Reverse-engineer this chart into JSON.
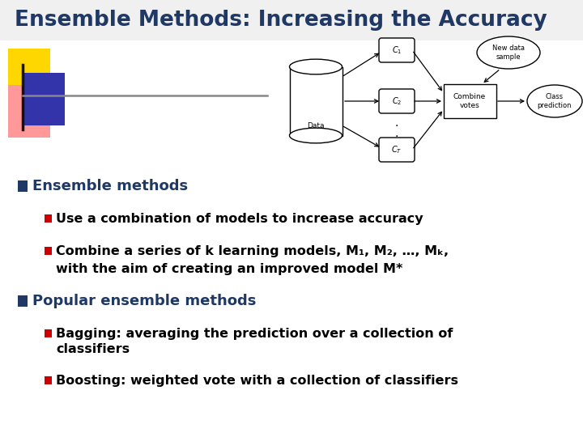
{
  "title": "Ensemble Methods: Increasing the Accuracy",
  "title_color": "#1F3864",
  "title_fontsize": 19,
  "bg_color": "#FFFFFF",
  "bullet1_text": "Ensemble methods",
  "bullet1_color": "#1F3864",
  "bullet1_marker_color": "#1F3864",
  "sub1a": "Use a combination of models to increase accuracy",
  "sub1b_line1": "Combine a series of k learning models, M₁, M₂, …, Mₖ,",
  "sub1b_line2": "with the aim of creating an improved model M*",
  "bullet2_text": "Popular ensemble methods",
  "bullet2_color": "#1F3864",
  "bullet2_marker_color": "#1F3864",
  "sub2a_line1": "Bagging: averaging the prediction over a collection of",
  "sub2a_line2": "classifiers",
  "sub2b": "Boosting: weighted vote with a collection of classifiers",
  "sub_bullet_color": "#CC0000",
  "sub_text_color": "#000000",
  "decoration_yellow": "#FFD700",
  "decoration_pink": "#FF9999",
  "decoration_blue": "#3333AA",
  "line_color": "#888888"
}
